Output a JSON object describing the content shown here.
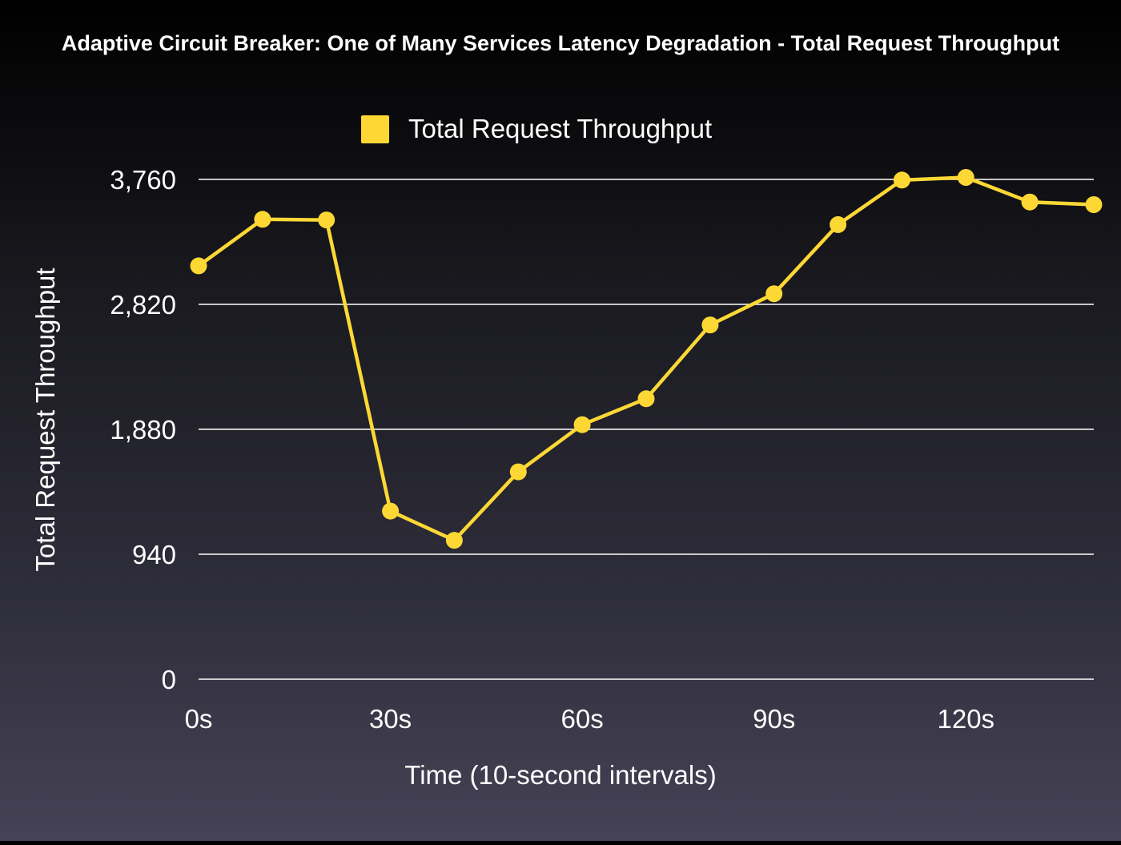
{
  "chart_data": {
    "type": "line",
    "title": "Adaptive Circuit Breaker: One of Many Services Latency Degradation - Total Request Throughput",
    "xlabel": "Time (10-second intervals)",
    "ylabel": "Total Request Throughput",
    "x": [
      0,
      10,
      20,
      30,
      40,
      50,
      60,
      70,
      80,
      90,
      100,
      110,
      120,
      130,
      140
    ],
    "x_unit": "s",
    "x_ticks": [
      0,
      30,
      60,
      90,
      120
    ],
    "x_tick_labels": [
      "0s",
      "30s",
      "60s",
      "90s",
      "120s"
    ],
    "xlim": [
      0,
      140
    ],
    "y_ticks": [
      0,
      940,
      1880,
      2820,
      3760
    ],
    "y_tick_labels": [
      "0",
      "940",
      "1,880",
      "2,820",
      "3,760"
    ],
    "ylim": [
      0,
      3760
    ],
    "grid": true,
    "legend_position": "top-center",
    "series": [
      {
        "name": "Total Request Throughput",
        "color": "#fdd835",
        "values": [
          3110,
          3460,
          3455,
          1265,
          1045,
          1560,
          1915,
          2110,
          2665,
          2900,
          3420,
          3755,
          3775,
          3590,
          3570
        ]
      }
    ]
  }
}
